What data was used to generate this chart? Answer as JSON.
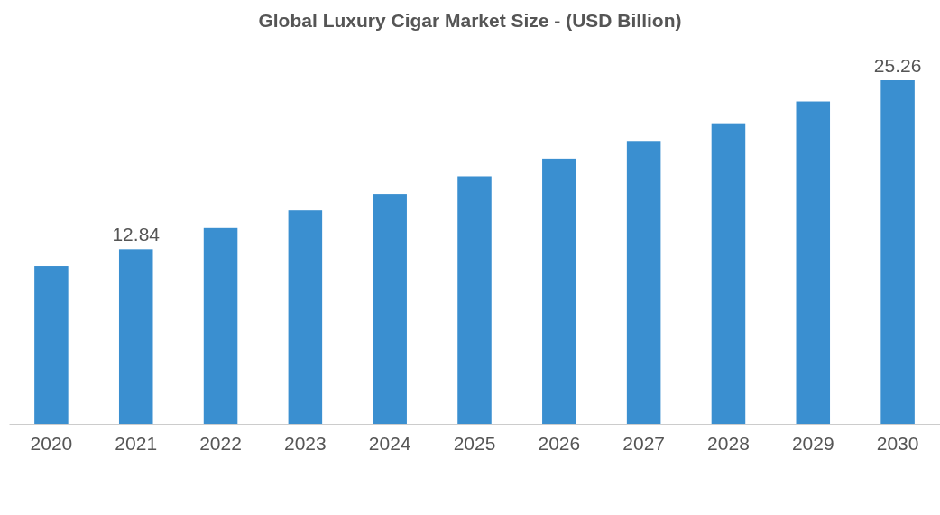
{
  "chart_data": {
    "type": "bar",
    "title": "Global Luxury Cigar Market Size - (USD Billion)",
    "categories": [
      "2020",
      "2021",
      "2022",
      "2023",
      "2024",
      "2025",
      "2026",
      "2027",
      "2028",
      "2029",
      "2030"
    ],
    "values": [
      11.6,
      12.84,
      14.4,
      15.7,
      16.9,
      18.2,
      19.5,
      20.8,
      22.1,
      23.7,
      25.26
    ],
    "value_labels": [
      null,
      "12.84",
      null,
      null,
      null,
      null,
      null,
      null,
      null,
      null,
      "25.26"
    ],
    "color": "#3a8fd0"
  }
}
